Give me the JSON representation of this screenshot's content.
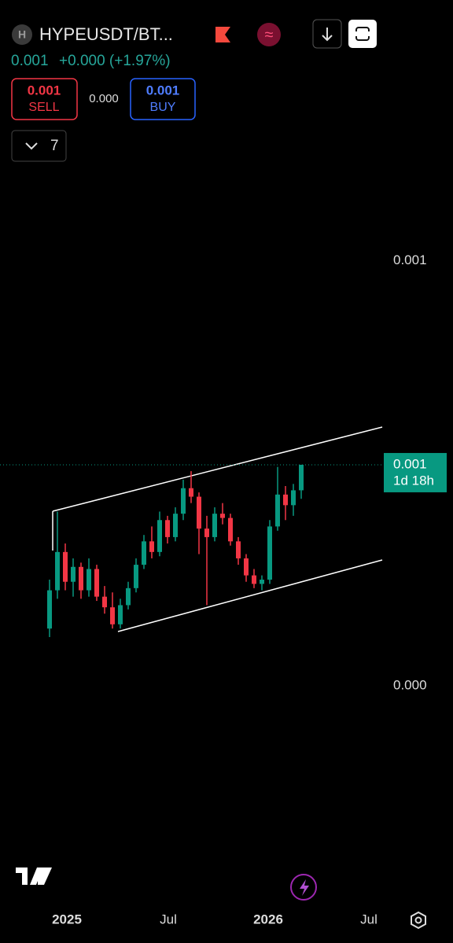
{
  "header": {
    "icon_letter": "H",
    "symbol": "HYPEUSDT/BT...",
    "price": "0.001",
    "change": "+0.000 (+1.97%)"
  },
  "trade": {
    "sell_price": "0.001",
    "sell_label": "SELL",
    "spread": "0.000",
    "buy_price": "0.001",
    "buy_label": "BUY"
  },
  "indicators_count": "7",
  "chart_data": {
    "type": "candlestick",
    "open": [
      0.000427,
      0.000445,
      0.000463,
      0.000449,
      0.000456,
      0.000445,
      0.000455,
      0.000442,
      0.000437,
      0.000429,
      0.000438,
      0.000446,
      0.000457,
      0.000468,
      0.000463,
      0.000478,
      0.00047,
      0.000481,
      0.000493,
      0.000489,
      0.000474,
      0.00047,
      0.000481,
      0.000479,
      0.000468,
      0.00046,
      0.000452,
      0.000448,
      0.00045,
      0.000475,
      0.00049,
      0.000485,
      0.000492
    ],
    "high": [
      0.00045,
      0.000482,
      0.000467,
      0.00046,
      0.000458,
      0.00046,
      0.000457,
      0.000447,
      0.000444,
      0.000441,
      0.000449,
      0.00046,
      0.000471,
      0.000475,
      0.000482,
      0.00048,
      0.000484,
      0.000497,
      0.000501,
      0.000491,
      0.00048,
      0.000484,
      0.000486,
      0.000481,
      0.00047,
      0.000462,
      0.000455,
      0.000452,
      0.000478,
      0.000503,
      0.000494,
      0.000495,
      0.000504
    ],
    "low": [
      0.000423,
      0.000441,
      0.000445,
      0.000442,
      0.000441,
      0.000442,
      0.00044,
      0.000434,
      0.000427,
      0.000427,
      0.000436,
      0.000444,
      0.000455,
      0.00046,
      0.000461,
      0.000467,
      0.000468,
      0.000478,
      0.000486,
      0.000462,
      0.000438,
      0.000468,
      0.000476,
      0.000466,
      0.000457,
      0.000449,
      0.000446,
      0.000445,
      0.000448,
      0.000473,
      0.000478,
      0.00048,
      0.000488
    ],
    "close": [
      0.000445,
      0.000463,
      0.000449,
      0.000456,
      0.000445,
      0.000455,
      0.000442,
      0.000437,
      0.000429,
      0.000438,
      0.000446,
      0.000457,
      0.000468,
      0.000463,
      0.000478,
      0.00047,
      0.000481,
      0.000493,
      0.000489,
      0.000474,
      0.00047,
      0.000481,
      0.000479,
      0.000468,
      0.00046,
      0.000452,
      0.000448,
      0.00045,
      0.000475,
      0.00049,
      0.000485,
      0.000492,
      0.000504
    ],
    "up_color": "#089981",
    "down_color": "#f23645",
    "ylim": [
      0.000301,
      0.000643
    ],
    "yticks": [
      {
        "value": 0.0006,
        "label": "0.001"
      },
      {
        "value": 0.0004,
        "label": "0.000"
      }
    ],
    "x_labels": [
      "2025",
      "Jul",
      "2026",
      "Jul"
    ],
    "last_price_label": "0.001",
    "countdown": "1d 18h"
  }
}
